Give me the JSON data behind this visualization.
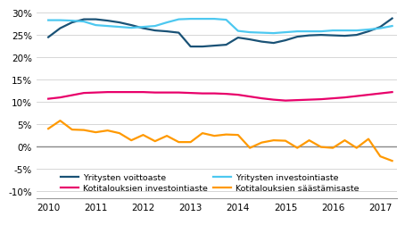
{
  "title": "",
  "xlim": [
    2009.75,
    2017.35
  ],
  "ylim": [
    -0.115,
    0.315
  ],
  "yticks": [
    -0.1,
    -0.05,
    0.0,
    0.05,
    0.1,
    0.15,
    0.2,
    0.25,
    0.3
  ],
  "xticks": [
    2010,
    2011,
    2012,
    2013,
    2014,
    2015,
    2016,
    2017
  ],
  "grid_color": "#d0d0d0",
  "zero_line_color": "#888888",
  "series": {
    "voittoaste": {
      "label": "Yritysten voittoaste",
      "color": "#1a5276",
      "linewidth": 1.6,
      "x": [
        2010.0,
        2010.25,
        2010.5,
        2010.75,
        2011.0,
        2011.25,
        2011.5,
        2011.75,
        2012.0,
        2012.25,
        2012.5,
        2012.75,
        2013.0,
        2013.25,
        2013.5,
        2013.75,
        2014.0,
        2014.25,
        2014.5,
        2014.75,
        2015.0,
        2015.25,
        2015.5,
        2015.75,
        2016.0,
        2016.25,
        2016.5,
        2016.75,
        2017.0,
        2017.25
      ],
      "y": [
        0.245,
        0.265,
        0.278,
        0.285,
        0.285,
        0.282,
        0.278,
        0.272,
        0.265,
        0.26,
        0.258,
        0.255,
        0.224,
        0.224,
        0.226,
        0.228,
        0.244,
        0.24,
        0.235,
        0.232,
        0.238,
        0.246,
        0.249,
        0.25,
        0.249,
        0.248,
        0.25,
        0.258,
        0.268,
        0.287
      ]
    },
    "yritys_investointi": {
      "label": "Yritysten investointiaste",
      "color": "#4dc8f0",
      "linewidth": 1.6,
      "x": [
        2010.0,
        2010.25,
        2010.5,
        2010.75,
        2011.0,
        2011.25,
        2011.5,
        2011.75,
        2012.0,
        2012.25,
        2012.5,
        2012.75,
        2013.0,
        2013.25,
        2013.5,
        2013.75,
        2014.0,
        2014.25,
        2014.5,
        2014.75,
        2015.0,
        2015.25,
        2015.5,
        2015.75,
        2016.0,
        2016.25,
        2016.5,
        2016.75,
        2017.0,
        2017.25
      ],
      "y": [
        0.283,
        0.283,
        0.282,
        0.28,
        0.272,
        0.27,
        0.268,
        0.266,
        0.268,
        0.27,
        0.278,
        0.285,
        0.286,
        0.286,
        0.286,
        0.284,
        0.259,
        0.256,
        0.255,
        0.254,
        0.256,
        0.258,
        0.258,
        0.258,
        0.26,
        0.26,
        0.26,
        0.262,
        0.265,
        0.27
      ]
    },
    "koti_investointi": {
      "label": "Kotitalouksien investointiaste",
      "color": "#e8006a",
      "linewidth": 1.6,
      "x": [
        2010.0,
        2010.25,
        2010.5,
        2010.75,
        2011.0,
        2011.25,
        2011.5,
        2011.75,
        2012.0,
        2012.25,
        2012.5,
        2012.75,
        2013.0,
        2013.25,
        2013.5,
        2013.75,
        2014.0,
        2014.25,
        2014.5,
        2014.75,
        2015.0,
        2015.25,
        2015.5,
        2015.75,
        2016.0,
        2016.25,
        2016.5,
        2016.75,
        2017.0,
        2017.25
      ],
      "y": [
        0.107,
        0.11,
        0.115,
        0.12,
        0.121,
        0.122,
        0.122,
        0.122,
        0.122,
        0.121,
        0.121,
        0.121,
        0.12,
        0.119,
        0.119,
        0.118,
        0.116,
        0.112,
        0.108,
        0.105,
        0.103,
        0.104,
        0.105,
        0.106,
        0.108,
        0.11,
        0.113,
        0.116,
        0.119,
        0.122
      ]
    },
    "koti_saasto": {
      "label": "Kotitalouksien säästämisaste",
      "color": "#ff9900",
      "linewidth": 1.6,
      "x": [
        2010.0,
        2010.25,
        2010.5,
        2010.75,
        2011.0,
        2011.25,
        2011.5,
        2011.75,
        2012.0,
        2012.25,
        2012.5,
        2012.75,
        2013.0,
        2013.25,
        2013.5,
        2013.75,
        2014.0,
        2014.25,
        2014.5,
        2014.75,
        2015.0,
        2015.25,
        2015.5,
        2015.75,
        2016.0,
        2016.25,
        2016.5,
        2016.75,
        2017.0,
        2017.25
      ],
      "y": [
        0.04,
        0.058,
        0.038,
        0.037,
        0.032,
        0.036,
        0.03,
        0.014,
        0.026,
        0.012,
        0.024,
        0.01,
        0.01,
        0.03,
        0.024,
        0.027,
        0.026,
        -0.003,
        0.009,
        0.014,
        0.013,
        -0.003,
        0.014,
        -0.001,
        -0.003,
        0.014,
        -0.003,
        0.017,
        -0.022,
        -0.032
      ]
    }
  },
  "legend_fontsize": 6.8,
  "tick_fontsize": 7.5,
  "background_color": "#ffffff"
}
